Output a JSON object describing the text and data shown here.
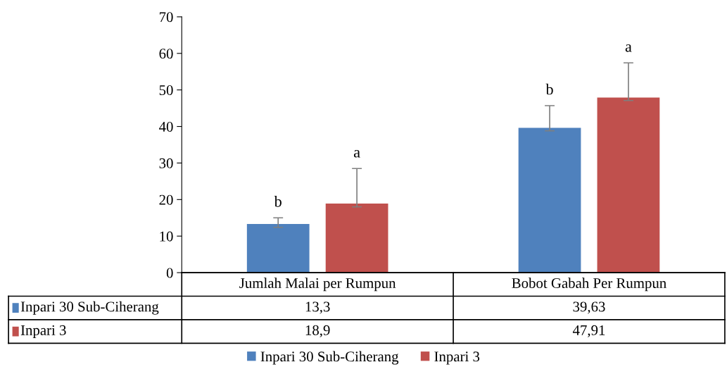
{
  "chart_data": {
    "type": "bar",
    "categories": [
      "Jumlah Malai per Rumpun",
      "Bobot Gabah Per Rumpun"
    ],
    "series": [
      {
        "name": "Inpari 30 Sub-Ciherang",
        "color": "#4f81bd",
        "values": [
          13.3,
          39.63
        ],
        "value_labels": [
          "13,3",
          "39,63"
        ],
        "errors": [
          [
            12.4,
            15.0
          ],
          [
            38.8,
            45.7
          ]
        ]
      },
      {
        "name": "Inpari 3",
        "color": "#c0504d",
        "values": [
          18.9,
          47.91
        ],
        "value_labels": [
          "18,9",
          "47,91"
        ],
        "errors": [
          [
            18.0,
            28.5
          ],
          [
            47.1,
            57.4
          ]
        ]
      }
    ],
    "ylim": [
      0,
      70
    ],
    "yticks": [
      0,
      10,
      20,
      30,
      40,
      50,
      60,
      70
    ],
    "grid": false,
    "legend": "bottom",
    "annotations": [
      "b",
      "a",
      "b",
      "a"
    ]
  }
}
